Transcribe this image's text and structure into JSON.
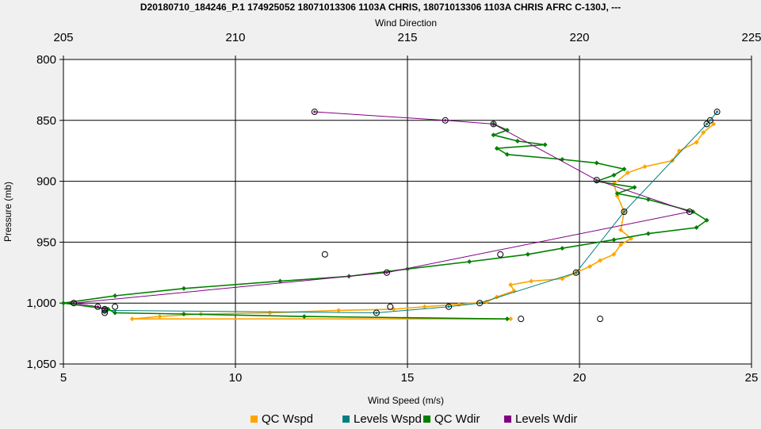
{
  "chart_data": {
    "type": "line",
    "title": "D20180710_184246_P.1 174925052 18071013306 1103A CHRIS, 18071013306 1103A CHRIS AFRC C-130J, ---",
    "xlabel_bottom": "Wind Speed (m/s)",
    "xlabel_top": "Wind Direction",
    "ylabel": "Pressure (mb)",
    "x_bottom_range": [
      5,
      25
    ],
    "x_top_range": [
      205,
      225
    ],
    "y_range": [
      800,
      1050
    ],
    "y_inverted": true,
    "grid": true,
    "legend_position": "bottom",
    "x_bottom_ticks": [
      "5",
      "10",
      "15",
      "20",
      "25"
    ],
    "x_top_ticks": [
      "205",
      "210",
      "215",
      "220",
      "225"
    ],
    "y_ticks": [
      "800",
      "850",
      "900",
      "950",
      "1,000",
      "1,050"
    ],
    "colors": {
      "qc_wspd": "#ffa500",
      "levels_wspd": "#008080",
      "qc_wdir": "#008000",
      "levels_wdir": "#800080"
    },
    "series": [
      {
        "name": "QC Wspd",
        "axis": "bottom",
        "points": [
          [
            23.9,
            853
          ],
          [
            23.6,
            860
          ],
          [
            23.4,
            868
          ],
          [
            22.9,
            875
          ],
          [
            22.7,
            883
          ],
          [
            21.9,
            888
          ],
          [
            21.4,
            893
          ],
          [
            21.0,
            902
          ],
          [
            21.1,
            912
          ],
          [
            21.3,
            925
          ],
          [
            21.2,
            940
          ],
          [
            21.5,
            947
          ],
          [
            21.2,
            952
          ],
          [
            21.0,
            960
          ],
          [
            20.6,
            965
          ],
          [
            20.3,
            970
          ],
          [
            19.9,
            975
          ],
          [
            19.5,
            980
          ],
          [
            18.6,
            982
          ],
          [
            18.0,
            985
          ],
          [
            18.1,
            990
          ],
          [
            17.6,
            995
          ],
          [
            17.3,
            999
          ],
          [
            16.5,
            1001
          ],
          [
            15.5,
            1003
          ],
          [
            14.6,
            1005
          ],
          [
            13.0,
            1006
          ],
          [
            11.0,
            1008
          ],
          [
            9.0,
            1009
          ],
          [
            7.8,
            1011
          ],
          [
            7.0,
            1013
          ],
          [
            18.0,
            1013
          ]
        ]
      },
      {
        "name": "Levels Wspd",
        "axis": "bottom",
        "points": [
          [
            24.0,
            843
          ],
          [
            23.8,
            850
          ],
          [
            23.7,
            853
          ],
          [
            21.3,
            925
          ],
          [
            19.9,
            975
          ],
          [
            17.1,
            1000
          ],
          [
            16.2,
            1003
          ],
          [
            14.1,
            1008
          ],
          [
            6.2,
            1006
          ],
          [
            6.2,
            1008
          ]
        ]
      },
      {
        "name": "QC Wdir",
        "axis": "top",
        "points": [
          [
            217.5,
            853
          ],
          [
            217.9,
            858
          ],
          [
            217.5,
            862
          ],
          [
            218.2,
            867
          ],
          [
            219.0,
            870
          ],
          [
            217.6,
            873
          ],
          [
            217.9,
            878
          ],
          [
            219.5,
            882
          ],
          [
            220.5,
            885
          ],
          [
            221.3,
            890
          ],
          [
            221.0,
            895
          ],
          [
            220.5,
            900
          ],
          [
            221.6,
            905
          ],
          [
            221.1,
            910
          ],
          [
            222.0,
            915
          ],
          [
            223.3,
            925
          ],
          [
            223.7,
            932
          ],
          [
            223.4,
            938
          ],
          [
            222.0,
            943
          ],
          [
            221.0,
            948
          ],
          [
            219.5,
            955
          ],
          [
            218.5,
            960
          ],
          [
            216.8,
            966
          ],
          [
            215.0,
            972
          ],
          [
            213.3,
            978
          ],
          [
            211.3,
            982
          ],
          [
            208.5,
            988
          ],
          [
            206.5,
            994
          ],
          [
            205.0,
            1000
          ],
          [
            206.3,
            1005
          ],
          [
            206.5,
            1008
          ],
          [
            208.5,
            1009
          ],
          [
            212.0,
            1011
          ],
          [
            217.9,
            1013
          ]
        ]
      },
      {
        "name": "Levels Wdir",
        "axis": "top",
        "points": [
          [
            212.3,
            843
          ],
          [
            216.1,
            850
          ],
          [
            217.5,
            853
          ],
          [
            220.5,
            899
          ],
          [
            223.2,
            925
          ],
          [
            214.4,
            975
          ],
          [
            205.3,
            1000
          ],
          [
            206.0,
            1003
          ],
          [
            206.2,
            1005
          ]
        ]
      }
    ],
    "extra_markers": [
      [
        12.6,
        960
      ],
      [
        17.7,
        960
      ],
      [
        14.5,
        1003
      ],
      [
        18.3,
        1013
      ],
      [
        20.6,
        1013
      ],
      [
        6.5,
        1003
      ]
    ]
  }
}
